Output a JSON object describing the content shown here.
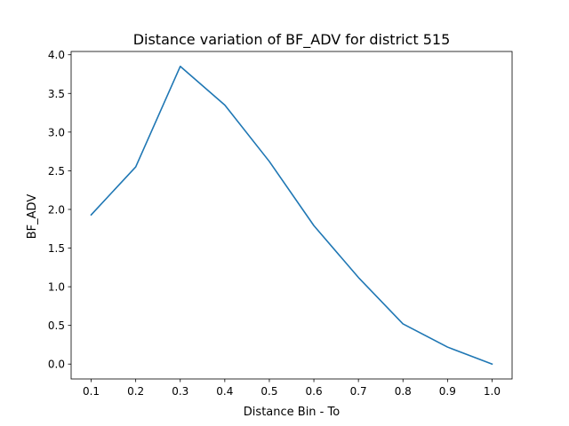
{
  "chart_data": {
    "type": "line",
    "title": "Distance variation of BF_ADV for district 515",
    "xlabel": "Distance Bin - To",
    "ylabel": "BF_ADV",
    "x": [
      0.1,
      0.2,
      0.3,
      0.4,
      0.5,
      0.6,
      0.7,
      0.8,
      0.9,
      1.0
    ],
    "series": [
      {
        "values": [
          1.93,
          2.55,
          3.85,
          3.35,
          2.62,
          1.79,
          1.12,
          0.52,
          0.22,
          0.0
        ],
        "color": "#1f77b4"
      }
    ],
    "xticks": [
      "0.1",
      "0.2",
      "0.3",
      "0.4",
      "0.5",
      "0.6",
      "0.7",
      "0.8",
      "0.9",
      "1.0"
    ],
    "yticks": [
      "0.0",
      "0.5",
      "1.0",
      "1.5",
      "2.0",
      "2.5",
      "3.0",
      "3.5",
      "4.0"
    ],
    "xlim": [
      0.055,
      1.045
    ],
    "ylim": [
      -0.1925,
      4.0425
    ],
    "grid": false,
    "legend": "none"
  }
}
